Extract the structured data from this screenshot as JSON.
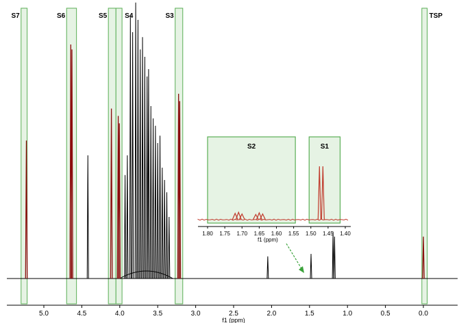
{
  "chart_data": {
    "type": "line",
    "xlabel": "f1 (ppm)",
    "x_reversed": true,
    "xlim": [
      5.55,
      -0.5
    ],
    "x_ticks": [
      "5.0",
      "4.5",
      "4.0",
      "3.5",
      "3.0",
      "2.5",
      "2.0",
      "1.5",
      "1.0",
      "0.5",
      "0.0"
    ],
    "x_tick_values": [
      5.0,
      4.5,
      4.0,
      3.5,
      3.0,
      2.5,
      2.0,
      1.5,
      1.0,
      0.5,
      0.0
    ],
    "regions": [
      {
        "label": "S7",
        "from": 5.3,
        "to": 5.22
      },
      {
        "label": "S6",
        "from": 4.7,
        "to": 4.57
      },
      {
        "label": "S5",
        "from": 4.15,
        "to": 4.05
      },
      {
        "label": "S4",
        "from": 4.05,
        "to": 3.97
      },
      {
        "label": "S3",
        "from": 3.27,
        "to": 3.17
      },
      {
        "label": "TSP",
        "from": 0.02,
        "to": -0.05
      }
    ],
    "highlighted_peaks": [
      {
        "ppm": 5.23,
        "height": 0.56
      },
      {
        "ppm": 4.645,
        "height": 0.95
      },
      {
        "ppm": 4.63,
        "height": 0.93
      },
      {
        "ppm": 4.11,
        "height": 0.69
      },
      {
        "ppm": 4.02,
        "height": 0.66
      },
      {
        "ppm": 4.005,
        "height": 0.63
      },
      {
        "ppm": 3.225,
        "height": 0.75
      },
      {
        "ppm": 3.21,
        "height": 0.72
      },
      {
        "ppm": 0.0,
        "height": 0.17
      }
    ],
    "other_peaks": [
      {
        "ppm": 4.42,
        "height": 0.5
      },
      {
        "ppm": 3.86,
        "height": 1.07
      },
      {
        "ppm": 3.83,
        "height": 1.0
      },
      {
        "ppm": 3.79,
        "height": 1.12
      },
      {
        "ppm": 3.76,
        "height": 1.05
      },
      {
        "ppm": 3.73,
        "height": 0.93
      },
      {
        "ppm": 3.7,
        "height": 0.98
      },
      {
        "ppm": 3.67,
        "height": 0.9
      },
      {
        "ppm": 3.64,
        "height": 0.82
      },
      {
        "ppm": 3.62,
        "height": 0.85
      },
      {
        "ppm": 3.59,
        "height": 0.7
      },
      {
        "ppm": 3.56,
        "height": 0.65
      },
      {
        "ppm": 3.53,
        "height": 0.62
      },
      {
        "ppm": 3.5,
        "height": 0.55
      },
      {
        "ppm": 3.47,
        "height": 0.58
      },
      {
        "ppm": 3.44,
        "height": 0.45
      },
      {
        "ppm": 3.41,
        "height": 0.4
      },
      {
        "ppm": 3.38,
        "height": 0.35
      },
      {
        "ppm": 3.35,
        "height": 0.25
      },
      {
        "ppm": 3.93,
        "height": 0.42
      },
      {
        "ppm": 3.9,
        "height": 0.5
      },
      {
        "ppm": 2.05,
        "height": 0.09
      },
      {
        "ppm": 1.48,
        "height": 0.1
      },
      {
        "ppm": 1.19,
        "height": 0.19
      },
      {
        "ppm": 1.17,
        "height": 0.17
      }
    ],
    "insets": [
      {
        "x_ticks": [
          "1.80",
          "1.75",
          "1.70",
          "1.65",
          "1.60",
          "1.55",
          "1.50",
          "1.45",
          "1.40"
        ],
        "x_tick_values": [
          1.8,
          1.75,
          1.7,
          1.65,
          1.6,
          1.55,
          1.5,
          1.45,
          1.4
        ],
        "xlabel": "f1 (ppm)",
        "xlim": [
          1.83,
          1.38
        ],
        "regions": [
          {
            "label": "S2",
            "from": 1.8,
            "to": 1.545
          },
          {
            "label": "S1",
            "from": 1.505,
            "to": 1.415
          }
        ],
        "peaks": [
          {
            "ppm": 1.475,
            "height": 1.0
          },
          {
            "ppm": 1.465,
            "height": 1.0
          },
          {
            "ppm": 1.72,
            "height": 0.14
          },
          {
            "ppm": 1.71,
            "height": 0.16
          },
          {
            "ppm": 1.7,
            "height": 0.13
          },
          {
            "ppm": 1.66,
            "height": 0.12
          },
          {
            "ppm": 1.65,
            "height": 0.15
          },
          {
            "ppm": 1.64,
            "height": 0.13
          }
        ]
      }
    ],
    "colors": {
      "region_fill": "#e6f3e4",
      "region_stroke": "#5aae55",
      "highlight_trace": "#8b0d0d",
      "trace": "#000000",
      "inset_trace": "#c0392b",
      "arrow": "#3aa23a"
    }
  }
}
